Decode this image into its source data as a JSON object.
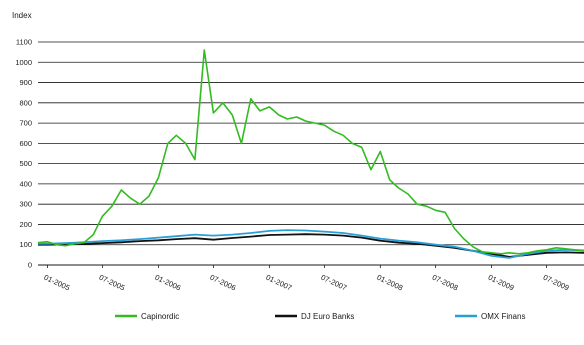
{
  "chart_data": {
    "type": "line",
    "ylabel": "Index",
    "xlabel": "",
    "ylim": [
      0,
      1100
    ],
    "yticks": [
      0,
      100,
      200,
      300,
      400,
      500,
      600,
      700,
      800,
      900,
      1000,
      1100
    ],
    "xlim": [
      "2004-12-01",
      "2009-11-01"
    ],
    "xticks": [
      "01-2005",
      "07-2005",
      "01-2006",
      "07-2006",
      "01-2007",
      "07-2007",
      "01-2008",
      "07-2008",
      "01-2009",
      "07-2009"
    ],
    "grid": "horizontal",
    "legend_position": "bottom",
    "series": [
      {
        "name": "Capinordic",
        "color": "#33bb22",
        "x": [
          "2004-12-01",
          "2005-01-01",
          "2005-02-01",
          "2005-03-01",
          "2005-04-01",
          "2005-05-01",
          "2005-06-01",
          "2005-07-01",
          "2005-08-01",
          "2005-09-01",
          "2005-10-01",
          "2005-11-01",
          "2005-12-01",
          "2006-01-01",
          "2006-02-01",
          "2006-03-01",
          "2006-04-01",
          "2006-05-01",
          "2006-06-01",
          "2006-07-01",
          "2006-08-01",
          "2006-09-01",
          "2006-10-01",
          "2006-11-01",
          "2006-12-01",
          "2007-01-01",
          "2007-02-01",
          "2007-03-01",
          "2007-04-01",
          "2007-05-01",
          "2007-06-01",
          "2007-07-01",
          "2007-08-01",
          "2007-09-01",
          "2007-10-01",
          "2007-11-01",
          "2007-12-01",
          "2008-01-01",
          "2008-02-01",
          "2008-03-01",
          "2008-04-01",
          "2008-05-01",
          "2008-06-01",
          "2008-07-01",
          "2008-08-01",
          "2008-09-01",
          "2008-10-01",
          "2008-11-01",
          "2008-12-01",
          "2009-01-01",
          "2009-02-01",
          "2009-03-01",
          "2009-04-01",
          "2009-05-01",
          "2009-06-01",
          "2009-07-01",
          "2009-08-01",
          "2009-09-01",
          "2009-10-01",
          "2009-11-01"
        ],
        "values": [
          110,
          115,
          100,
          95,
          105,
          110,
          150,
          240,
          290,
          370,
          330,
          300,
          340,
          430,
          600,
          640,
          600,
          520,
          1060,
          750,
          800,
          740,
          600,
          820,
          760,
          780,
          740,
          720,
          730,
          710,
          700,
          690,
          660,
          640,
          600,
          580,
          470,
          560,
          420,
          380,
          350,
          300,
          290,
          270,
          260,
          180,
          130,
          90,
          65,
          60,
          55,
          60,
          55,
          60,
          70,
          75,
          85,
          80,
          75,
          70
        ]
      },
      {
        "name": "DJ Euro Banks",
        "color": "#111111",
        "x": [
          "2004-12-01",
          "2005-01-01",
          "2005-03-01",
          "2005-05-01",
          "2005-07-01",
          "2005-09-01",
          "2005-11-01",
          "2006-01-01",
          "2006-03-01",
          "2006-05-01",
          "2006-07-01",
          "2006-09-01",
          "2006-11-01",
          "2007-01-01",
          "2007-03-01",
          "2007-05-01",
          "2007-07-01",
          "2007-09-01",
          "2007-11-01",
          "2008-01-01",
          "2008-03-01",
          "2008-05-01",
          "2008-07-01",
          "2008-09-01",
          "2008-11-01",
          "2009-01-01",
          "2009-03-01",
          "2009-05-01",
          "2009-07-01",
          "2009-09-01",
          "2009-11-01"
        ],
        "values": [
          100,
          100,
          102,
          104,
          108,
          112,
          118,
          122,
          128,
          132,
          125,
          133,
          140,
          148,
          150,
          152,
          150,
          145,
          135,
          120,
          110,
          105,
          95,
          85,
          70,
          55,
          40,
          50,
          60,
          62,
          60
        ]
      },
      {
        "name": "OMX Finans",
        "color": "#2a9fd6",
        "x": [
          "2004-12-01",
          "2005-01-01",
          "2005-03-01",
          "2005-05-01",
          "2005-07-01",
          "2005-09-01",
          "2005-11-01",
          "2006-01-01",
          "2006-03-01",
          "2006-05-01",
          "2006-07-01",
          "2006-09-01",
          "2006-11-01",
          "2007-01-01",
          "2007-03-01",
          "2007-05-01",
          "2007-07-01",
          "2007-09-01",
          "2007-11-01",
          "2008-01-01",
          "2008-03-01",
          "2008-05-01",
          "2008-07-01",
          "2008-09-01",
          "2008-11-01",
          "2009-01-01",
          "2009-03-01",
          "2009-05-01",
          "2009-07-01",
          "2009-09-01",
          "2009-11-01"
        ],
        "values": [
          105,
          105,
          108,
          112,
          118,
          122,
          128,
          135,
          142,
          150,
          145,
          150,
          158,
          168,
          172,
          170,
          165,
          158,
          145,
          130,
          120,
          112,
          100,
          90,
          70,
          45,
          35,
          55,
          70,
          75,
          72
        ]
      }
    ]
  }
}
